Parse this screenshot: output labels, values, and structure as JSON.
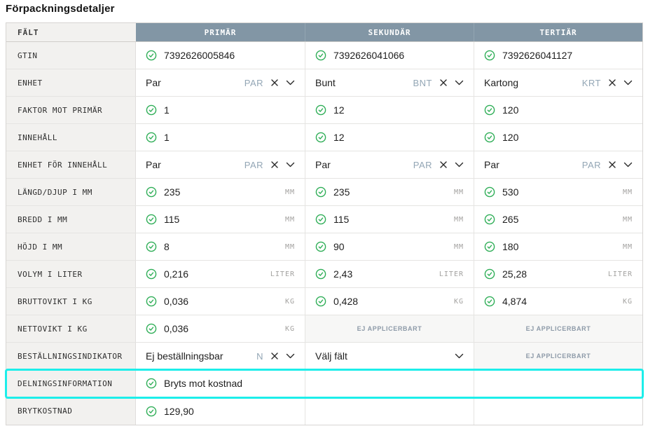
{
  "page_title": "Förpackningsdetaljer",
  "colors": {
    "header_field_bg": "#d2cec9",
    "header_column_bg": "#8296a5",
    "label_cell_bg": "#f2f1ef",
    "check_green": "#2fae57",
    "code_slate": "#93a6b5",
    "highlight_cyan": "#1deeea",
    "na_bg": "#f7f7f6",
    "na_text": "#8d9aa8"
  },
  "table": {
    "columns": [
      "FÄLT",
      "PRIMÄR",
      "SEKUNDÄR",
      "TERTIÄR"
    ],
    "na_label": "EJ APPLICERBART",
    "rows": [
      {
        "label": "GTIN",
        "cells": [
          {
            "type": "check",
            "value": "7392626005846"
          },
          {
            "type": "check",
            "value": "7392626041066"
          },
          {
            "type": "check",
            "value": "7392626041127"
          }
        ]
      },
      {
        "label": "ENHET",
        "cells": [
          {
            "type": "select",
            "value": "Par",
            "code": "PAR"
          },
          {
            "type": "select",
            "value": "Bunt",
            "code": "BNT"
          },
          {
            "type": "select",
            "value": "Kartong",
            "code": "KRT"
          }
        ]
      },
      {
        "label": "FAKTOR MOT PRIMÄR",
        "cells": [
          {
            "type": "check",
            "value": "1"
          },
          {
            "type": "check",
            "value": "12"
          },
          {
            "type": "check",
            "value": "120"
          }
        ]
      },
      {
        "label": "INNEHÅLL",
        "cells": [
          {
            "type": "check",
            "value": "1"
          },
          {
            "type": "check",
            "value": "12"
          },
          {
            "type": "check",
            "value": "120"
          }
        ]
      },
      {
        "label": "ENHET FÖR INNEHÅLL",
        "cells": [
          {
            "type": "select",
            "value": "Par",
            "code": "PAR"
          },
          {
            "type": "select",
            "value": "Par",
            "code": "PAR"
          },
          {
            "type": "select",
            "value": "Par",
            "code": "PAR"
          }
        ]
      },
      {
        "label": "LÄNGD/DJUP I MM",
        "cells": [
          {
            "type": "check",
            "value": "235",
            "unit": "MM"
          },
          {
            "type": "check",
            "value": "235",
            "unit": "MM"
          },
          {
            "type": "check",
            "value": "530",
            "unit": "MM"
          }
        ]
      },
      {
        "label": "BREDD I MM",
        "cells": [
          {
            "type": "check",
            "value": "115",
            "unit": "MM"
          },
          {
            "type": "check",
            "value": "115",
            "unit": "MM"
          },
          {
            "type": "check",
            "value": "265",
            "unit": "MM"
          }
        ]
      },
      {
        "label": "HÖJD I MM",
        "cells": [
          {
            "type": "check",
            "value": "8",
            "unit": "MM"
          },
          {
            "type": "check",
            "value": "90",
            "unit": "MM"
          },
          {
            "type": "check",
            "value": "180",
            "unit": "MM"
          }
        ]
      },
      {
        "label": "VOLYM I LITER",
        "cells": [
          {
            "type": "check",
            "value": "0,216",
            "unit": "LITER"
          },
          {
            "type": "check",
            "value": "2,43",
            "unit": "LITER"
          },
          {
            "type": "check",
            "value": "25,28",
            "unit": "LITER"
          }
        ]
      },
      {
        "label": "BRUTTOVIKT I KG",
        "cells": [
          {
            "type": "check",
            "value": "0,036",
            "unit": "KG"
          },
          {
            "type": "check",
            "value": "0,428",
            "unit": "KG"
          },
          {
            "type": "check",
            "value": "4,874",
            "unit": "KG"
          }
        ]
      },
      {
        "label": "NETTOVIKT I KG",
        "cells": [
          {
            "type": "check",
            "value": "0,036",
            "unit": "KG"
          },
          {
            "type": "na"
          },
          {
            "type": "na"
          }
        ]
      },
      {
        "label": "BESTÄLLNINGSINDIKATOR",
        "cells": [
          {
            "type": "select",
            "value": "Ej beställningsbar",
            "code": "N"
          },
          {
            "type": "select_plain",
            "value": "Välj fält"
          },
          {
            "type": "na"
          }
        ]
      },
      {
        "label": "DELNINGSINFORMATION",
        "highlighted": true,
        "cells": [
          {
            "type": "check",
            "value": "Bryts mot kostnad"
          },
          {
            "type": "empty"
          },
          {
            "type": "empty"
          }
        ]
      },
      {
        "label": "BRYTKOSTNAD",
        "cells": [
          {
            "type": "check",
            "value": "129,90"
          },
          {
            "type": "empty"
          },
          {
            "type": "empty"
          }
        ]
      }
    ]
  }
}
